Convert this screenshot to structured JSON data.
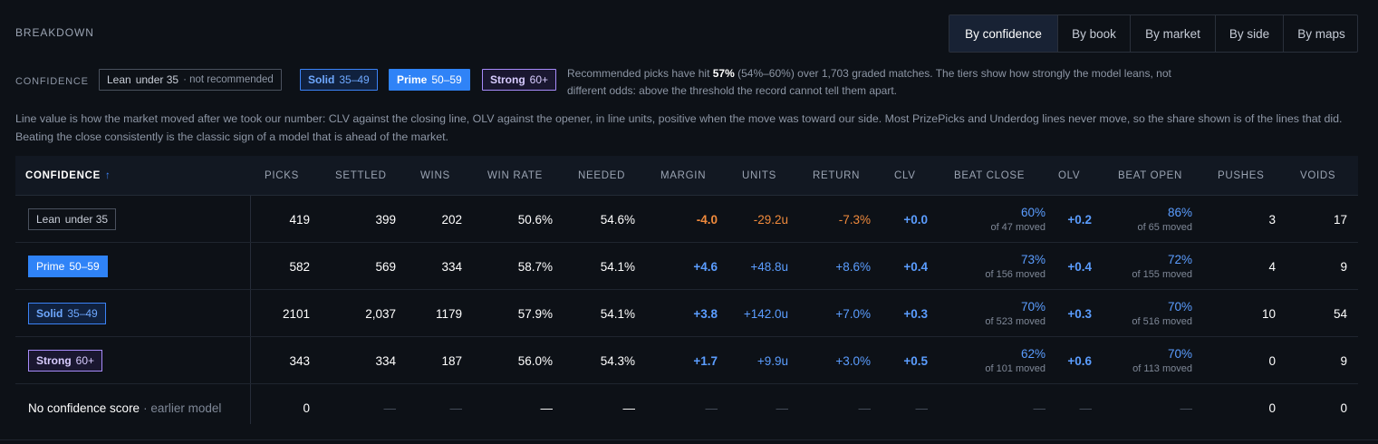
{
  "section_title": "BREAKDOWN",
  "tabs": [
    {
      "label": "By confidence",
      "active": true
    },
    {
      "label": "By book",
      "active": false
    },
    {
      "label": "By market",
      "active": false
    },
    {
      "label": "By side",
      "active": false
    },
    {
      "label": "By maps",
      "active": false
    }
  ],
  "confidence_legend": {
    "label": "CONFIDENCE",
    "lean": {
      "label": "Lean",
      "range": "under 35",
      "note": "· not recommended"
    },
    "solid": {
      "label": "Solid",
      "range": "35–49"
    },
    "prime": {
      "label": "Prime",
      "range": "50–59"
    },
    "strong": {
      "label": "Strong",
      "range": "60+"
    },
    "desc_pre": "Recommended picks have hit ",
    "desc_bold": "57%",
    "desc_post": " (54%–60%) over 1,703 graded matches. The tiers show how strongly the model leans, not different odds: above the threshold the record cannot tell them apart."
  },
  "line_value_desc": "Line value is how the market moved after we took our number: CLV against the closing line, OLV against the opener, in line units, positive when the move was toward our side. Most PrizePicks and Underdog lines never move, so the share shown is of the lines that did. Beating the close consistently is the classic sign of a model that is ahead of the market.",
  "columns": {
    "confidence": "CONFIDENCE",
    "sort_arrow": "↑",
    "picks": "PICKS",
    "settled": "SETTLED",
    "wins": "WINS",
    "win_rate": "WIN RATE",
    "needed": "NEEDED",
    "margin": "MARGIN",
    "units": "UNITS",
    "return": "RETURN",
    "clv": "CLV",
    "beat_close": "BEAT CLOSE",
    "olv": "OLV",
    "beat_open": "BEAT OPEN",
    "pushes": "PUSHES",
    "voids": "VOIDS"
  },
  "rows": [
    {
      "tier": "lean",
      "label": "Lean",
      "range": "under 35",
      "picks": "419",
      "settled": "399",
      "wins": "202",
      "win_rate": "50.6%",
      "needed": "54.6%",
      "margin": "-4.0",
      "units": "-29.2u",
      "return": "-7.3%",
      "clv": "+0.0",
      "beat_close": "60%",
      "beat_close_sub": "of 47 moved",
      "olv": "+0.2",
      "beat_open": "86%",
      "beat_open_sub": "of 65 moved",
      "pushes": "3",
      "voids": "17"
    },
    {
      "tier": "prime",
      "label": "Prime",
      "range": "50–59",
      "picks": "582",
      "settled": "569",
      "wins": "334",
      "win_rate": "58.7%",
      "needed": "54.1%",
      "margin": "+4.6",
      "units": "+48.8u",
      "return": "+8.6%",
      "clv": "+0.4",
      "beat_close": "73%",
      "beat_close_sub": "of 156 moved",
      "olv": "+0.4",
      "beat_open": "72%",
      "beat_open_sub": "of 155 moved",
      "pushes": "4",
      "voids": "9"
    },
    {
      "tier": "solid",
      "label": "Solid",
      "range": "35–49",
      "picks": "2101",
      "settled": "2,037",
      "wins": "1179",
      "win_rate": "57.9%",
      "needed": "54.1%",
      "margin": "+3.8",
      "units": "+142.0u",
      "return": "+7.0%",
      "clv": "+0.3",
      "beat_close": "70%",
      "beat_close_sub": "of 523 moved",
      "olv": "+0.3",
      "beat_open": "70%",
      "beat_open_sub": "of 516 moved",
      "pushes": "10",
      "voids": "54"
    },
    {
      "tier": "strong",
      "label": "Strong",
      "range": "60+",
      "picks": "343",
      "settled": "334",
      "wins": "187",
      "win_rate": "56.0%",
      "needed": "54.3%",
      "margin": "+1.7",
      "units": "+9.9u",
      "return": "+3.0%",
      "clv": "+0.5",
      "beat_close": "62%",
      "beat_close_sub": "of 101 moved",
      "olv": "+0.6",
      "beat_open": "70%",
      "beat_open_sub": "of 113 moved",
      "pushes": "0",
      "voids": "9"
    }
  ],
  "no_score_row": {
    "label": "No confidence score",
    "sub": "· earlier model",
    "picks": "0",
    "dash": "—",
    "pushes": "0",
    "voids": "0"
  },
  "colors": {
    "background": "#0d1117",
    "accent_blue": "#5b9dff",
    "negative_orange": "#f08a3c",
    "strong_purple": "#a78bfa"
  }
}
